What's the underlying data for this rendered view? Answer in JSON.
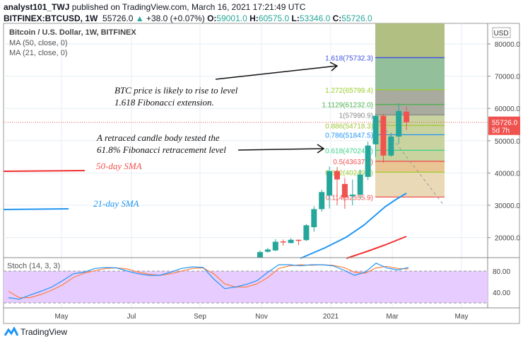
{
  "header": {
    "author": "analyst101_TWJ",
    "published": "published on TradingView.com, March 16, 2021 17:21:49 UTC",
    "symbol": "BITFINEX:BTCUSD, 1W",
    "last": "55726.0",
    "change": "+38.0 (+0.07%)",
    "o_label": "O:",
    "o": "59001.0",
    "h_label": "H:",
    "h": "60575.0",
    "l_label": "L:",
    "l": "53346.0",
    "c_label": "C:",
    "c": "55726.0"
  },
  "legend": {
    "title": "Bitcoin / U.S. Dollar, 1W, BITFINEX",
    "ma50": "MA (50, close, 0)",
    "ma21": "MA (21, close, 0)",
    "stoch": "Stoch (14, 3, 3)"
  },
  "annotations": {
    "a1_l1": "BTC price is likely to rise to level",
    "a1_l2": "1.618 Fibonacci extension.",
    "a2_l1": "A retraced candle body tested the",
    "a2_l2": "61.8% Fibonacci retracement level",
    "sma50": "50-day SMA",
    "sma21": "21-day SMA"
  },
  "footer": {
    "brand": "TradingView"
  },
  "colors": {
    "up": "#26a69a",
    "down": "#ef5350",
    "ma21": "#2196f3",
    "ma50": "#f23030",
    "stochK": "#2196f3",
    "stochD": "#ff7f3f",
    "stochBand": "#e6ccff"
  },
  "chart_data": {
    "type": "candlestick",
    "currency": "USD",
    "current_price_label": "55726.0",
    "countdown": "5d 7h",
    "price_ticks": [
      80000,
      70000,
      60000,
      50000,
      40000,
      30000,
      20000
    ],
    "price_tick_labels": [
      "80000.0",
      "70000.0",
      "60000.0",
      "50000.0",
      "40000.0",
      "30000.0",
      "20000.0"
    ],
    "time_ticks": [
      "May",
      "Jul",
      "Sep",
      "Nov",
      "2021",
      "Mar",
      "May"
    ],
    "candles": [
      [
        13000,
        16000,
        13000,
        15500
      ],
      [
        15600,
        16800,
        15300,
        16300
      ],
      [
        16000,
        19500,
        15800,
        18700
      ],
      [
        18800,
        19400,
        17500,
        18600
      ],
      [
        18300,
        19800,
        18200,
        19300
      ],
      [
        19300,
        19400,
        17700,
        19000
      ],
      [
        19200,
        24200,
        18900,
        23800
      ],
      [
        23200,
        29700,
        21800,
        28800
      ],
      [
        28800,
        34800,
        28000,
        34100
      ],
      [
        33000,
        42000,
        29000,
        40600
      ],
      [
        40600,
        41900,
        30000,
        38000
      ],
      [
        36600,
        38500,
        28900,
        32400
      ],
      [
        32800,
        38000,
        30000,
        33300
      ],
      [
        33300,
        41000,
        32000,
        39500
      ],
      [
        38800,
        49700,
        37800,
        48500
      ],
      [
        48900,
        58400,
        45000,
        57700
      ],
      [
        57700,
        58300,
        43200,
        45400
      ],
      [
        45400,
        52500,
        45000,
        51300
      ],
      [
        51300,
        61600,
        49000,
        59200
      ],
      [
        59001,
        60575,
        53346,
        55726
      ]
    ],
    "fib_levels": [
      {
        "label": "1.618(75732.3)",
        "price": 75732.3,
        "color": "#3f51e0"
      },
      {
        "label": "1.272(65799.4)",
        "price": 65799.4,
        "color": "#9ccc2c"
      },
      {
        "label": "1.1129(61232.0)",
        "price": 61232.0,
        "color": "#4caf50"
      },
      {
        "label": "1(57990.9)",
        "price": 57990.9,
        "color": "#888888"
      },
      {
        "label": "0.886(54718.3)",
        "price": 54718.3,
        "color": "#a0c43c"
      },
      {
        "label": "0.786(51847.5)",
        "price": 51847.5,
        "color": "#2196f3"
      },
      {
        "label": "0.618(47024.6)",
        "price": 47024.6,
        "color": "#3ad08a"
      },
      {
        "label": "0.5(43637.1)",
        "price": 43637.1,
        "color": "#ef5350"
      },
      {
        "label": "0.382(40249.6)",
        "price": 40249.6,
        "color": "#9ccc2c"
      },
      {
        "label": "0.114(32555.9)",
        "price": 32555.9,
        "color": "#ef5350"
      }
    ],
    "stoch_ticks": [
      "80.00",
      "40.00"
    ],
    "stoch_k": [
      30,
      27,
      35,
      42,
      50,
      62,
      75,
      78,
      85,
      87,
      86,
      80,
      75,
      72,
      72,
      78,
      85,
      88,
      87,
      65,
      47,
      50,
      55,
      62,
      78,
      92,
      92,
      90,
      92,
      92,
      90,
      82,
      72,
      78,
      95,
      86,
      82,
      87
    ],
    "stoch_d": [
      42,
      30,
      30,
      36,
      44,
      54,
      68,
      76,
      81,
      85,
      86,
      84,
      78,
      74,
      72,
      75,
      80,
      85,
      86,
      75,
      56,
      50,
      50,
      56,
      68,
      85,
      90,
      92,
      91,
      92,
      91,
      87,
      78,
      76,
      86,
      89,
      85,
      84
    ]
  }
}
